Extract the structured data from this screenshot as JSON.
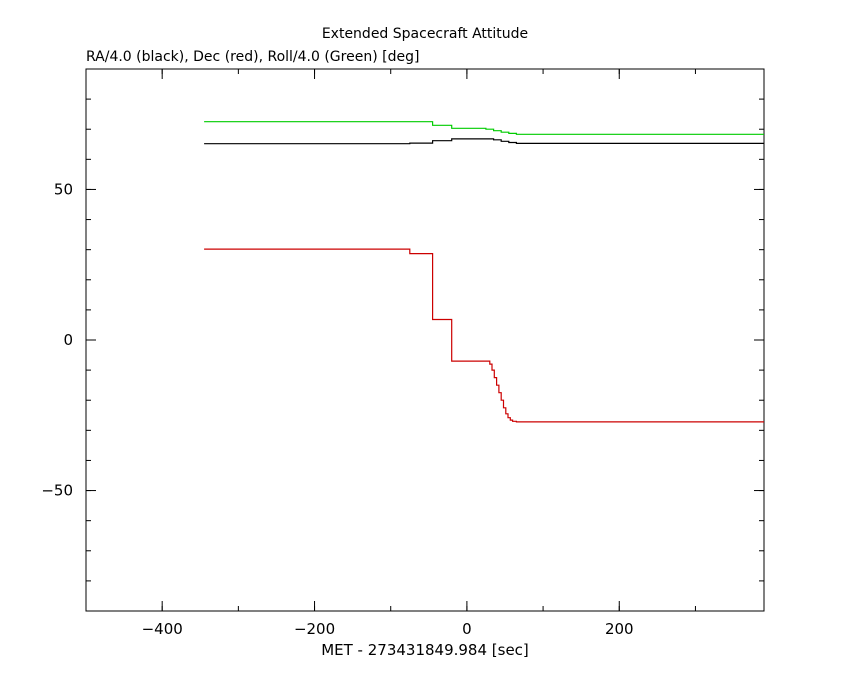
{
  "chart_data": {
    "type": "line",
    "title": "Extended Spacecraft Attitude",
    "subtitle": "RA/4.0 (black), Dec (red), Roll/4.0 (Green) [deg]",
    "xlabel": "MET - 273431849.984 [sec]",
    "ylabel": "",
    "xlim": [
      -500,
      390
    ],
    "ylim": [
      -90,
      90
    ],
    "xticks": [
      -400,
      -200,
      0,
      200
    ],
    "xtick_labels": [
      "−400",
      "−200",
      "0",
      "200"
    ],
    "yticks": [
      -50,
      0,
      50
    ],
    "ytick_labels": [
      "−50",
      "0",
      "50"
    ],
    "x_minor_step": 100,
    "y_minor_step": 10,
    "grid": false,
    "series": [
      {
        "color": "#00cc00",
        "step": true,
        "x": [
          -345,
          -45,
          -20,
          25,
          35,
          45,
          55,
          65,
          390
        ],
        "y": [
          72.5,
          71.3,
          70.3,
          70.0,
          69.5,
          69.0,
          68.6,
          68.3,
          68.3
        ]
      },
      {
        "color": "#000000",
        "step": true,
        "x": [
          -345,
          -75,
          -45,
          -20,
          25,
          35,
          45,
          55,
          65,
          390
        ],
        "y": [
          65.2,
          65.4,
          66.2,
          66.8,
          66.8,
          66.5,
          66.0,
          65.6,
          65.3,
          65.3
        ]
      },
      {
        "color": "#cc0000",
        "step": true,
        "x": [
          -345,
          -75,
          -45,
          -20,
          25,
          30,
          33,
          36,
          39,
          42,
          45,
          48,
          51,
          54,
          57,
          60,
          65,
          390
        ],
        "y": [
          30.2,
          28.7,
          6.8,
          -7.0,
          -7.0,
          -8.0,
          -10.0,
          -12.5,
          -15.0,
          -17.5,
          -20.0,
          -22.5,
          -24.5,
          -25.8,
          -26.6,
          -27.0,
          -27.2,
          -27.2
        ]
      }
    ]
  }
}
